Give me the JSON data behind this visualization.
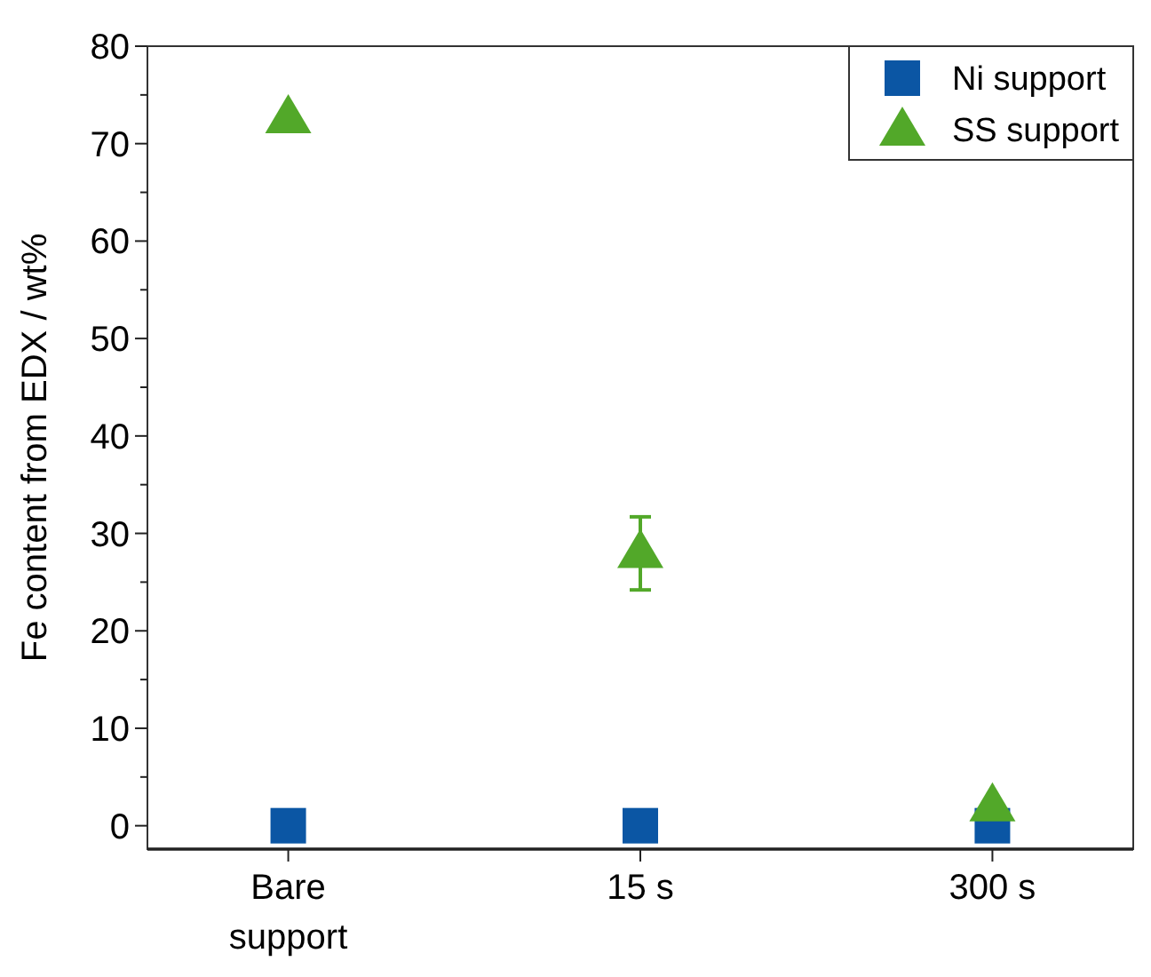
{
  "chart_data": {
    "type": "scatter",
    "ylabel": "Fe content from EDX / wt%",
    "categories": [
      "Bare support",
      "15 s",
      "300 s"
    ],
    "ylim": [
      -2.4,
      80
    ],
    "yticks": [
      0,
      {
        "value": 5,
        "label": null
      },
      10,
      {
        "value": 15,
        "label": null
      },
      20,
      {
        "value": 25,
        "label": null
      },
      30,
      {
        "value": 35,
        "label": null
      },
      40,
      {
        "value": 45,
        "label": null
      },
      50,
      {
        "value": 55,
        "label": null
      },
      60,
      {
        "value": 65,
        "label": null
      },
      70,
      {
        "value": 75,
        "label": null
      },
      80
    ],
    "legend": "top right",
    "grid": false,
    "series": [
      {
        "name": "Ni support",
        "color": "#0b56a4",
        "marker": "square",
        "values": [
          0,
          0,
          0
        ]
      },
      {
        "name": "SS support",
        "color": "#52a829",
        "marker": "triangle",
        "values": [
          72.7,
          28.1,
          2.1
        ],
        "errors": [
          null,
          [
            24.2,
            31.7
          ],
          null
        ]
      }
    ]
  }
}
